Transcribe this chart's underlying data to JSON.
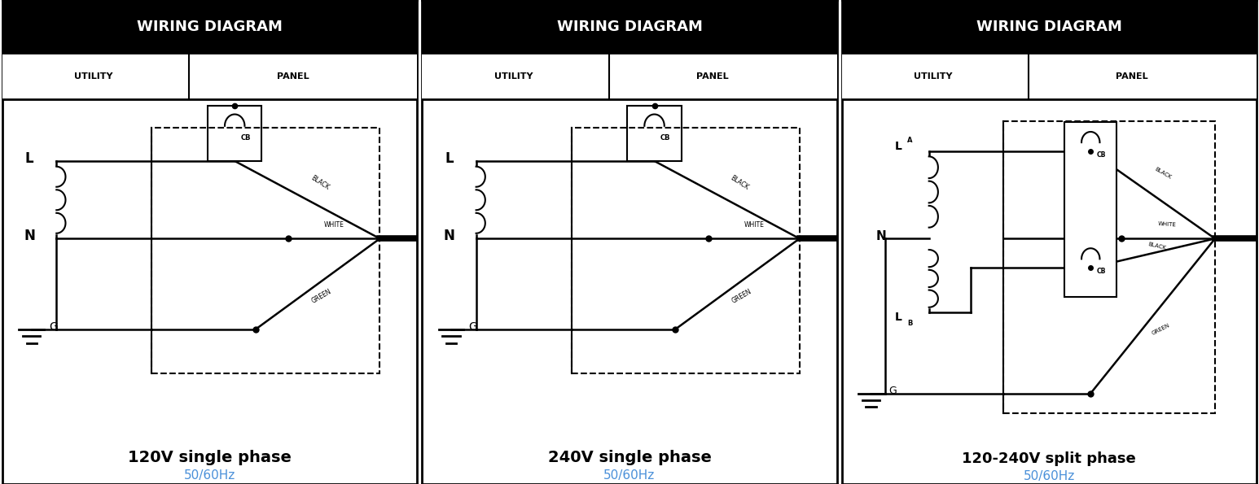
{
  "title": "WIRING DIAGRAM",
  "header_bg": "#000000",
  "header_text_color": "#ffffff",
  "utility_label": "UTILITY",
  "panel_label": "PANEL",
  "subtitle_color": "#000000",
  "hz_color": "#4a90d9",
  "bg_color": "#ffffff",
  "diagrams": [
    {
      "subtitle": "120V single phase",
      "hz": "50/60Hz",
      "type": "120V"
    },
    {
      "subtitle": "240V single phase",
      "hz": "50/60Hz",
      "type": "240V"
    },
    {
      "subtitle": "120-240V split phase",
      "hz": "50/60Hz",
      "type": "split"
    }
  ]
}
